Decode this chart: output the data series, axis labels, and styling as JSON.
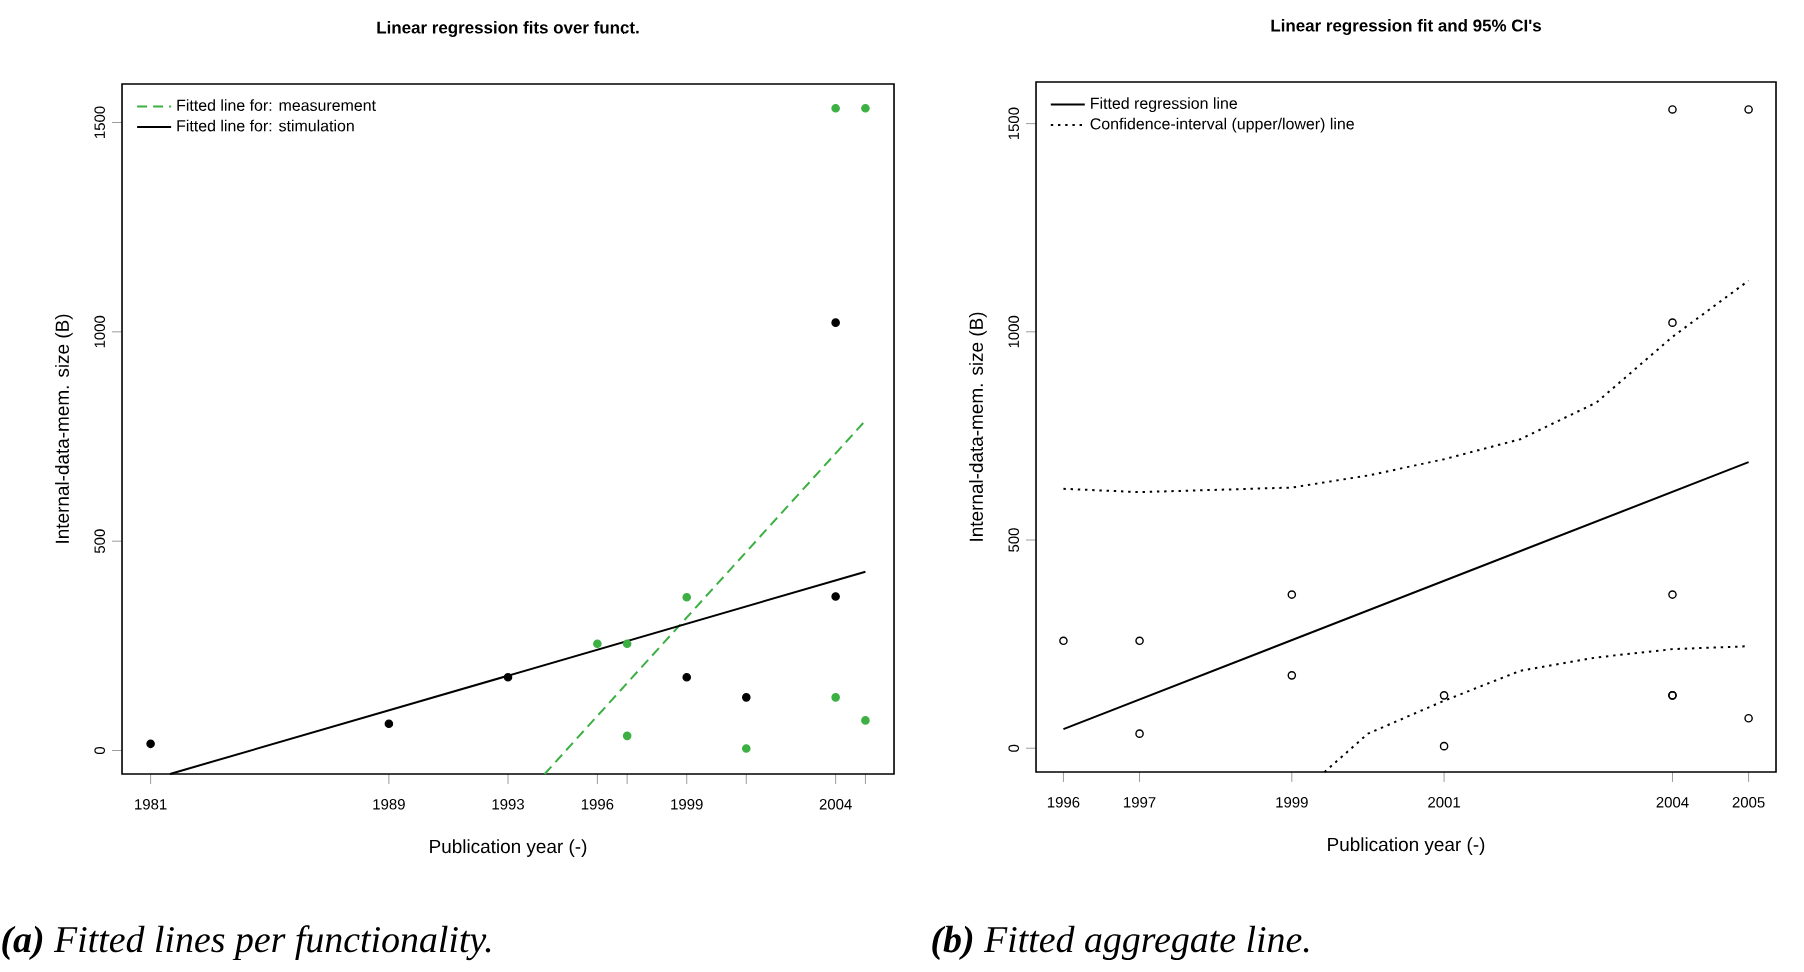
{
  "chart_data": [
    {
      "type": "scatter",
      "title": "Linear regression fits over funct.",
      "xlabel": "Publication year (-)",
      "ylabel": "Internal-data-mem. size (B)",
      "xlim": [
        1980.04,
        2005.96
      ],
      "ylim": [
        -56,
        1592
      ],
      "xticks": [
        1981,
        1989,
        1993,
        1996,
        {
          "value": 1997,
          "label": null
        },
        1999,
        {
          "value": 2001,
          "label": null
        },
        2004,
        {
          "value": 2005,
          "label": null
        }
      ],
      "yticks": [
        0,
        500,
        1000,
        1500
      ],
      "legend": "top left",
      "marker": "circle",
      "series": [
        {
          "type": "line",
          "name": "Fitted line for: measurement",
          "color": "#3cb043",
          "line_style": "dashed",
          "marker": "none",
          "x": [
            1994.23,
            2005
          ],
          "values": [
            -56,
            788
          ]
        },
        {
          "type": "line",
          "name": "Fitted line for: stimulation",
          "color": "#000000",
          "line_style": "solid",
          "marker": "none",
          "x": [
            1981.65,
            2005
          ],
          "values": [
            -56,
            427
          ]
        },
        {
          "color": "#000000",
          "x": [
            1981,
            1989,
            1993,
            1999,
            2001,
            2004,
            2004
          ],
          "values": [
            16,
            64,
            175,
            175,
            127,
            1022,
            368
          ]
        },
        {
          "color": "#3cb043",
          "x": [
            1996,
            1997,
            1997,
            1999,
            2001,
            2004,
            2004,
            2005,
            2005
          ],
          "values": [
            255,
            255,
            35,
            366,
            5,
            1534,
            127,
            1534,
            72
          ]
        }
      ],
      "annotations": [
        "**(a)** Fitted lines per functionality."
      ]
    },
    {
      "type": "scatter",
      "title": "Linear regression fit and 95% CI's",
      "xlabel": "Publication year (-)",
      "ylabel": "Internal-data-mem. size (B)",
      "xlim": [
        1995.64,
        2005.36
      ],
      "ylim": [
        -57,
        1600
      ],
      "xticks": [
        1996,
        1997,
        1999,
        2001,
        2004,
        2005
      ],
      "yticks": [
        0,
        500,
        1000,
        1500
      ],
      "legend": "top left",
      "marker": "circle",
      "series": [
        {
          "type": "line",
          "name": "Fitted regression line",
          "color": "#000000",
          "line_style": "solid",
          "marker": "none",
          "x": [
            1996,
            2005
          ],
          "values": [
            46,
            687
          ]
        },
        {
          "type": "line",
          "name": "Confidence-interval (upper/lower) line",
          "color": "#000000",
          "line_style": "dotted",
          "marker": "none",
          "x": [
            1996,
            1997,
            1999,
            2000,
            2001,
            2002,
            2003,
            2004,
            2005
          ],
          "values": [
            623,
            615,
            626,
            655,
            694,
            742,
            830,
            988,
            1123
          ]
        },
        {
          "type": "line",
          "color": "#000000",
          "line_style": "dotted",
          "marker": "none",
          "x": [
            1999.43,
            2000,
            2001,
            2002,
            2003,
            2004,
            2005
          ],
          "values": [
            -57,
            35,
            114,
            186,
            218,
            238,
            245
          ]
        },
        {
          "color": "#000000",
          "x": [
            1996,
            1997,
            1997,
            1999,
            1999,
            2001,
            2001,
            2004,
            2004,
            2004,
            2004,
            2004,
            2005,
            2005
          ],
          "values": [
            258,
            258,
            35,
            369,
            175,
            127,
            5,
            1534,
            1022,
            369,
            127,
            127,
            1534,
            72
          ]
        }
      ],
      "annotations": [
        "**(b)** Fitted aggregate line."
      ]
    }
  ]
}
